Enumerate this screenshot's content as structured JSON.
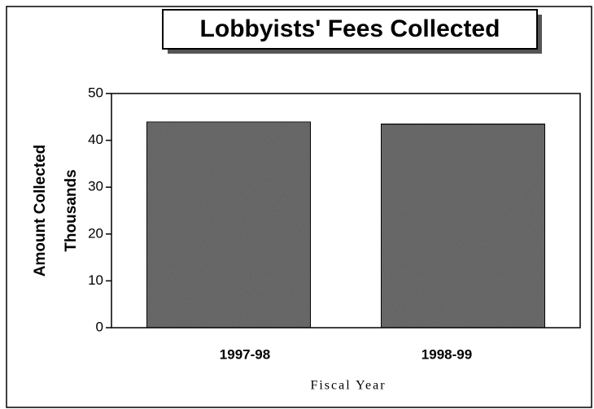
{
  "chart_data": {
    "type": "bar",
    "title": "Lobbyists' Fees Collected",
    "ylabel": [
      "Amount Collected",
      "Thousands"
    ],
    "xlabel": "Fiscal Year",
    "categories": [
      "1997-98",
      "1998-99"
    ],
    "values": [
      44,
      43.5
    ],
    "color": "#6e6e6e",
    "ylim": [
      0,
      50
    ],
    "yticks": [
      0,
      10,
      20,
      30,
      40,
      50
    ]
  }
}
